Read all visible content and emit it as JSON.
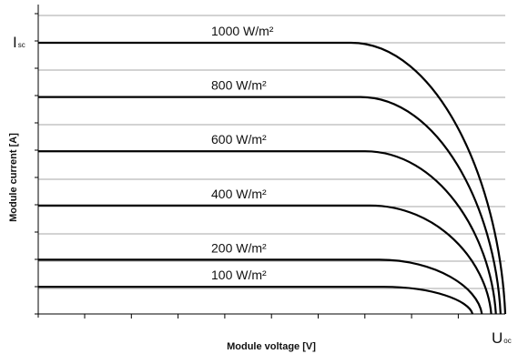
{
  "chart_data": {
    "type": "line",
    "title": "",
    "xlabel": "Module voltage [V]",
    "ylabel": "Module current [A]",
    "x_end_label": {
      "main": "U",
      "sub": "oc"
    },
    "y_end_label": {
      "main": "I",
      "sub": "sc"
    },
    "grid": "horizontal",
    "xlim": [
      0,
      1
    ],
    "ylim": [
      0,
      1
    ],
    "series": [
      {
        "name": "1000 W/m²",
        "current": 1.0,
        "knee_voltage": 0.67,
        "end_voltage": 1.0
      },
      {
        "name": "800 W/m²",
        "current": 0.8,
        "knee_voltage": 0.69,
        "end_voltage": 0.99
      },
      {
        "name": "600 W/m²",
        "current": 0.6,
        "knee_voltage": 0.7,
        "end_voltage": 0.98
      },
      {
        "name": "400 W/m²",
        "current": 0.4,
        "knee_voltage": 0.71,
        "end_voltage": 0.97
      },
      {
        "name": "200 W/m²",
        "current": 0.2,
        "knee_voltage": 0.73,
        "end_voltage": 0.95
      },
      {
        "name": "100 W/m²",
        "current": 0.1,
        "knee_voltage": 0.74,
        "end_voltage": 0.93
      }
    ]
  }
}
